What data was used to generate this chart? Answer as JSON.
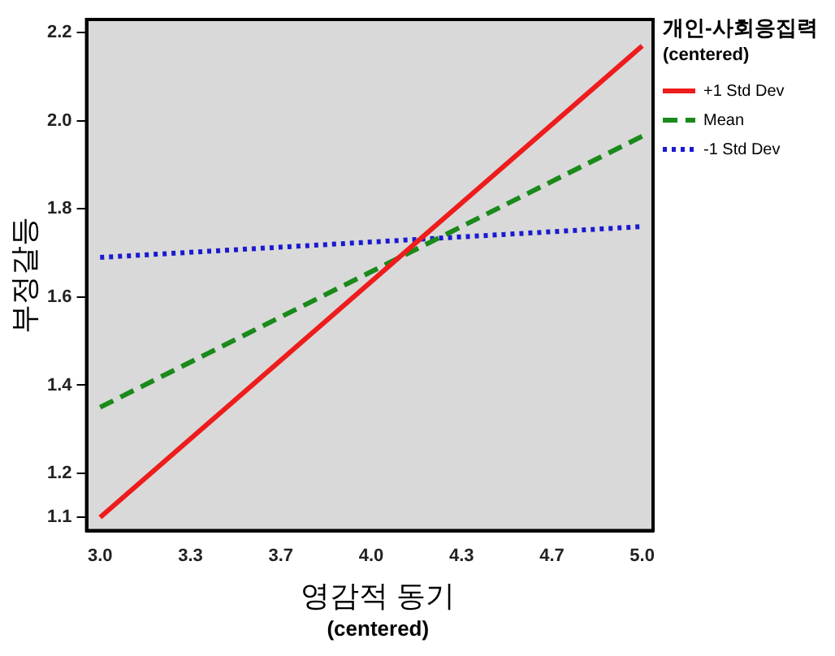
{
  "chart_data": {
    "type": "line",
    "xlabel": "영감적 동기\n(centered)",
    "ylabel": "부정갈등",
    "legend_title": "개인-사회응집력\n(centered)",
    "legend": "right",
    "marker": "none",
    "grid": false,
    "x": [
      3.0,
      5.0
    ],
    "xlim": [
      2.95,
      5.04
    ],
    "xticks": [
      {
        "value": 3.0,
        "label": "3.0"
      },
      {
        "value": 3.3333,
        "label": "3.3"
      },
      {
        "value": 3.6667,
        "label": "3.7"
      },
      {
        "value": 4.0,
        "label": "4.0"
      },
      {
        "value": 4.3333,
        "label": "4.3"
      },
      {
        "value": 4.6667,
        "label": "4.7"
      },
      {
        "value": 5.0,
        "label": "5.0"
      }
    ],
    "ylim": [
      1.07,
      2.23
    ],
    "yticks": [
      {
        "value": 1.1,
        "label": "1.1"
      },
      {
        "value": 1.2,
        "label": "1.2"
      },
      {
        "value": 1.4,
        "label": "1.4"
      },
      {
        "value": 1.6,
        "label": "1.6"
      },
      {
        "value": 1.8,
        "label": "1.8"
      },
      {
        "value": 2.0,
        "label": "2.0"
      },
      {
        "value": 2.2,
        "label": "2.2"
      }
    ],
    "series": [
      {
        "name": "+1 Std Dev",
        "color": "#ee1c1c",
        "line_style": "solid",
        "values": [
          1.1,
          2.17
        ]
      },
      {
        "name": "Mean",
        "color": "#1a8a1a",
        "line_style": "dashed",
        "values": [
          1.35,
          1.965
        ]
      },
      {
        "name": "-1 Std Dev",
        "color": "#1a1ad0",
        "line_style": "dotted",
        "values": [
          1.69,
          1.76
        ]
      }
    ]
  }
}
